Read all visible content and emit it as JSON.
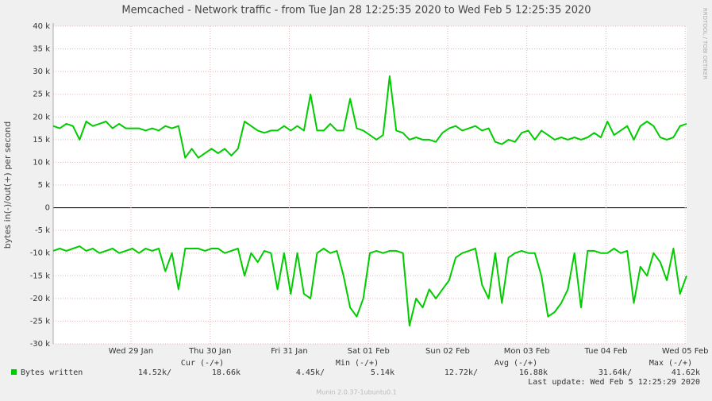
{
  "chart_data": {
    "type": "line",
    "title": "Memcached - Network traffic - from Tue Jan 28 12:25:35 2020 to Wed Feb  5 12:25:35 2020",
    "y_label": "bytes in(-)/out(+) per second",
    "watermark": "RRDTOOL / TOBI OETIKER",
    "x": [
      0,
      2,
      4,
      6,
      8,
      10,
      12,
      14,
      16,
      18,
      20,
      22,
      24,
      26,
      28,
      30,
      32,
      34,
      36,
      38,
      40,
      42,
      44,
      46,
      48,
      50,
      52,
      54,
      56,
      58,
      60,
      62,
      64,
      66,
      68,
      70,
      72,
      74,
      76,
      78,
      80,
      82,
      84,
      86,
      88,
      90,
      92,
      94,
      96,
      98,
      100,
      102,
      104,
      106,
      108,
      110,
      112,
      114,
      116,
      118,
      120,
      122,
      124,
      126,
      128,
      130,
      132,
      134,
      136,
      138,
      140,
      142,
      144,
      146,
      148,
      150,
      152,
      154,
      156,
      158,
      160,
      162,
      164,
      166,
      168,
      170,
      172,
      174,
      176,
      178,
      180,
      182,
      184,
      186,
      188,
      190,
      192
    ],
    "xlim": [
      0,
      192
    ],
    "xticks": [
      {
        "value": 23.57,
        "label": "Wed 29 Jan"
      },
      {
        "value": 47.57,
        "label": "Thu 30 Jan"
      },
      {
        "value": 71.57,
        "label": "Fri 31 Jan"
      },
      {
        "value": 95.57,
        "label": "Sat 01 Feb"
      },
      {
        "value": 119.57,
        "label": "Sun 02 Feb"
      },
      {
        "value": 143.57,
        "label": "Mon 03 Feb"
      },
      {
        "value": 167.57,
        "label": "Tue 04 Feb"
      },
      {
        "value": 191.57,
        "label": "Wed 05 Feb"
      }
    ],
    "ylim": [
      -30000,
      40000
    ],
    "yticks": [
      {
        "value": 40000,
        "label": "40 k"
      },
      {
        "value": 35000,
        "label": "35 k"
      },
      {
        "value": 30000,
        "label": "30 k"
      },
      {
        "value": 25000,
        "label": "25 k"
      },
      {
        "value": 20000,
        "label": "20 k"
      },
      {
        "value": 15000,
        "label": "15 k"
      },
      {
        "value": 10000,
        "label": "10 k"
      },
      {
        "value": 5000,
        "label": "5 k"
      },
      0,
      {
        "value": -5000,
        "label": "-5 k"
      },
      {
        "value": -10000,
        "label": "-10 k"
      },
      {
        "value": -15000,
        "label": "-15 k"
      },
      {
        "value": -20000,
        "label": "-20 k"
      },
      {
        "value": -25000,
        "label": "-25 k"
      },
      {
        "value": -30000,
        "label": "-30 k"
      }
    ],
    "grid": true,
    "series": [
      {
        "name": "Bytes written",
        "color": "#00cc00",
        "values": [
          18000,
          17500,
          18500,
          18000,
          15000,
          19000,
          18000,
          18500,
          19000,
          17500,
          18500,
          17500,
          17500,
          17500,
          17000,
          17500,
          17000,
          18000,
          17500,
          18000,
          11000,
          13000,
          11000,
          12000,
          13000,
          12000,
          13000,
          11500,
          13000,
          19000,
          18000,
          17000,
          16500,
          17000,
          17000,
          18000,
          17000,
          18000,
          17000,
          25000,
          17000,
          17000,
          18500,
          17000,
          17000,
          24000,
          17500,
          17000,
          16000,
          15000,
          16000,
          29000,
          17000,
          16500,
          15000,
          15500,
          15000,
          15000,
          14500,
          16500,
          17500,
          18000,
          17000,
          17500,
          18000,
          17000,
          17500,
          14500,
          14000,
          15000,
          14500,
          16500,
          17000,
          15000,
          17000,
          16000,
          15000,
          15500,
          15000,
          15500,
          15000,
          15500,
          16500,
          15500,
          19000,
          16000,
          17000,
          18000,
          15000,
          18000,
          19000,
          18000,
          15500,
          15000,
          15500,
          18000,
          18500
        ]
      },
      {
        "color": "#00cc00",
        "values": [
          -9500,
          -9000,
          -9500,
          -9000,
          -8500,
          -9500,
          -9000,
          -10000,
          -9500,
          -9000,
          -10000,
          -9500,
          -9000,
          -10000,
          -9000,
          -9500,
          -9000,
          -14000,
          -10000,
          -18000,
          -9000,
          -9000,
          -9000,
          -9500,
          -9000,
          -9000,
          -10000,
          -9500,
          -9000,
          -15000,
          -10000,
          -12000,
          -9500,
          -10000,
          -18000,
          -10000,
          -19000,
          -10000,
          -19000,
          -20000,
          -10000,
          -9000,
          -10000,
          -9500,
          -15000,
          -22000,
          -24000,
          -20000,
          -10000,
          -9500,
          -10000,
          -9500,
          -9500,
          -10000,
          -26000,
          -20000,
          -22000,
          -18000,
          -20000,
          -18000,
          -16000,
          -11000,
          -10000,
          -9500,
          -9000,
          -17000,
          -20000,
          -10000,
          -21000,
          -11000,
          -10000,
          -9500,
          -10000,
          -10000,
          -15000,
          -24000,
          -23000,
          -21000,
          -18000,
          -10000,
          -22000,
          -9500,
          -9500,
          -10000,
          -10000,
          -9000,
          -10000,
          -9500,
          -21000,
          -13000,
          -15000,
          -10000,
          -12000,
          -16000,
          -9000,
          -19000,
          -15000
        ]
      }
    ],
    "stats": {
      "headers": [
        "Cur (-/+)",
        "Min (-/+)",
        "Avg (-/+)",
        "Max (-/+)"
      ],
      "values": [
        "14.52k/",
        "18.66k",
        "4.45k/",
        "5.14k",
        "12.72k/",
        "16.88k",
        "31.64k/",
        "41.62k"
      ]
    },
    "last_update": "Last update: Wed Feb  5 12:25:29 2020",
    "footer": "Munin 2.0.37-1ubuntu0.1"
  }
}
